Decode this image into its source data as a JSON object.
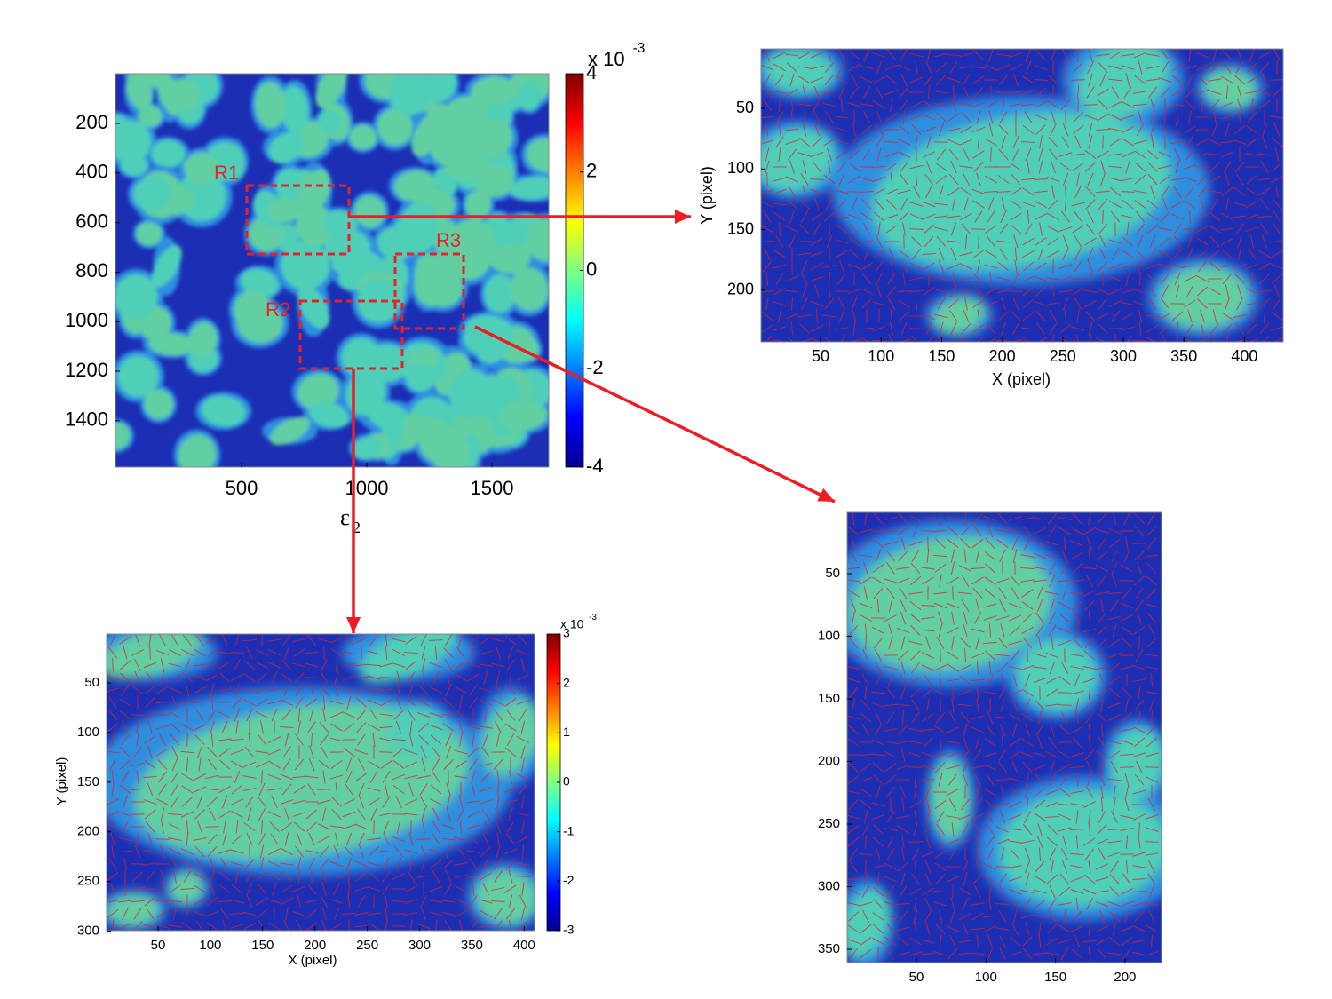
{
  "main": {
    "yticks": [
      200,
      400,
      600,
      800,
      1000,
      1200,
      1400
    ],
    "xticks": [
      500,
      1000,
      1500
    ],
    "xlabel": "ε",
    "xlabel_sub": "2",
    "colorbar": {
      "ticks": [
        4,
        2,
        0,
        -2,
        -4
      ],
      "base": "x 10",
      "exponent": "-3"
    },
    "regions": [
      "R1",
      "R2",
      "R3"
    ]
  },
  "panels": [
    {
      "yticks": [
        50,
        100,
        150,
        200
      ],
      "xticks": [
        50,
        100,
        150,
        200,
        250,
        300,
        350,
        400
      ],
      "xlabel": "X (pixel)",
      "ylabel": "Y (pixel)"
    },
    {
      "yticks": [
        50,
        100,
        150,
        200,
        250,
        300
      ],
      "xticks": [
        50,
        100,
        150,
        200,
        250,
        300,
        350,
        400
      ],
      "xlabel": "X (pixel)",
      "ylabel": "Y (pixel)",
      "colorbar": {
        "ticks": [
          3,
          2,
          1,
          0,
          -1,
          -2,
          -3
        ],
        "base": "x 10",
        "exponent": "-3"
      }
    },
    {
      "yticks": [
        50,
        100,
        150,
        200,
        250,
        300,
        350
      ],
      "xticks": [
        50,
        100,
        150,
        200
      ]
    }
  ]
}
